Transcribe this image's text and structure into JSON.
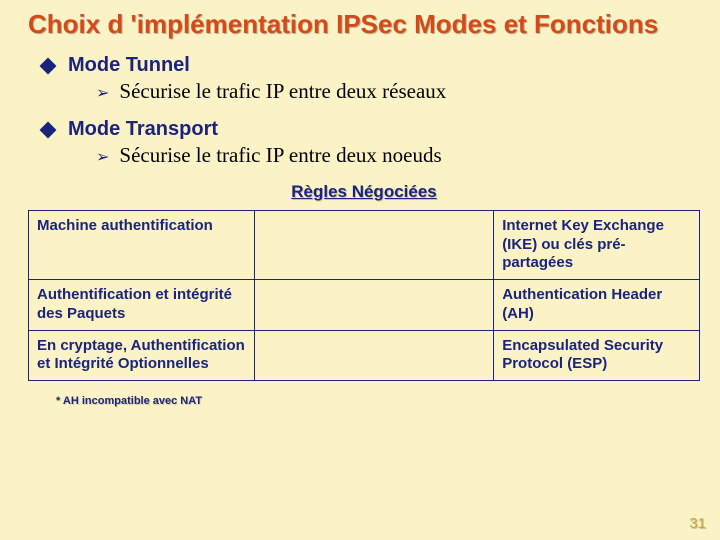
{
  "title": "Choix d 'implémentation IPSec Modes et Fonctions",
  "bullets": [
    {
      "head": "Mode Tunnel",
      "sub": "Sécurise le trafic IP entre deux réseaux"
    },
    {
      "head": "Mode Transport",
      "sub": "Sécurise le trafic IP entre deux noeuds"
    }
  ],
  "section_label": "Règles Négociées",
  "table": {
    "rows": [
      {
        "left": "Machine authentification",
        "right": "Internet Key Exchange (IKE) ou clés pré-partagées"
      },
      {
        "left": "Authentification et intégrité des Paquets",
        "right": "Authentication Header (AH)"
      },
      {
        "left": "En cryptage, Authentification et Intégrité Optionnelles",
        "right": "Encapsulated Security Protocol (ESP)"
      }
    ]
  },
  "footnote": "* AH incompatible avec NAT",
  "page_number": "31",
  "colors": {
    "background": "#fbf3c6",
    "title": "#d44a1a",
    "primary": "#1a237e",
    "pagenum": "#c9a63a"
  }
}
